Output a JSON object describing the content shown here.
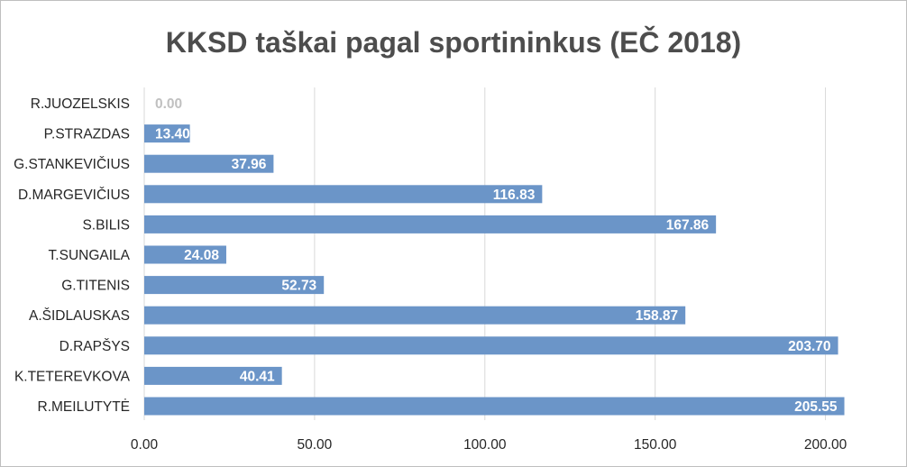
{
  "chart_data": {
    "type": "bar",
    "orientation": "horizontal",
    "title": "KKSD taškai pagal sportininkus (EČ 2018)",
    "xlabel": "",
    "ylabel": "",
    "xlim": [
      0,
      225
    ],
    "tick_values": [
      0,
      50,
      100,
      150,
      200
    ],
    "tick_labels": [
      "0.00",
      "50.00",
      "100.00",
      "150.00",
      "200.00"
    ],
    "categories": [
      "R.JUOZELSKIS",
      "P.STRAZDAS",
      "G.STANKEVIČIUS",
      "D.MARGEVIČIUS",
      "S.BILIS",
      "T.SUNGAILA",
      "G.TITENIS",
      "A.ŠIDLAUSKAS",
      "D.RAPŠYS",
      "K.TETEREVKOVA",
      "R.MEILUTYTĖ"
    ],
    "values": [
      0.0,
      13.4,
      37.96,
      116.83,
      167.86,
      24.08,
      52.73,
      158.87,
      203.7,
      40.41,
      205.55
    ],
    "value_labels": [
      "0.00",
      "13.40",
      "37.96",
      "116.83",
      "167.86",
      "24.08",
      "52.73",
      "158.87",
      "203.70",
      "40.41",
      "205.55"
    ],
    "bar_color": "#6b95c8",
    "grid": true,
    "legend": "none"
  }
}
